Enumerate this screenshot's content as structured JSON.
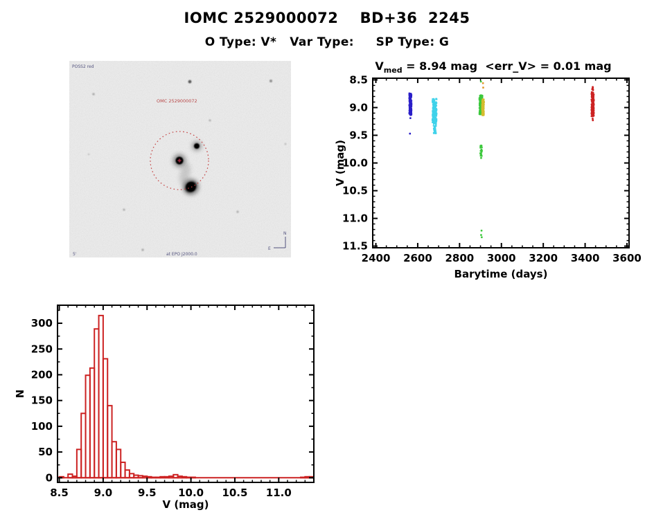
{
  "page": {
    "title": "IOMC 2529000072    BD+36  2245",
    "subtitle": "O Type: V*   Var Type:     SP Type: G"
  },
  "finder_chart": {
    "survey_label": "POSS2 red",
    "target_label": "OMC 2529000072",
    "epoch_label": "at EPO J2000.0",
    "scale_label": "5'",
    "compass_north": "N",
    "compass_east": "E"
  },
  "chart_data": [
    {
      "id": "lightcurve",
      "type": "scatter",
      "title": {
        "var": "V",
        "sub": "med",
        "rest": " = 8.94 mag  <err_V> = 0.01 mag"
      },
      "xlabel": "Barytime (days)",
      "ylabel": "V (mag)",
      "xlim": [
        2385,
        3610
      ],
      "ylim_top": 8.47,
      "ylim_bottom": 11.53,
      "xticks": [
        2400,
        2600,
        2800,
        3000,
        3200,
        3400,
        3600
      ],
      "xtick_labels": [
        "2400",
        "2600",
        "2800",
        "3000",
        "3200",
        "3400",
        "3600"
      ],
      "yticks": [
        8.5,
        9.0,
        9.5,
        10.0,
        10.5,
        11.0,
        11.5
      ],
      "ytick_labels": [
        "8.5",
        "9.0",
        "9.5",
        "10.0",
        "10.5",
        "11.0",
        "11.5"
      ],
      "x_minor": 50,
      "y_minor": 0.1,
      "marker_px": 2.4,
      "clusters": [
        {
          "name": "epoch1-blue",
          "color": "#2a1ec8",
          "x": 2565,
          "x_spread": 11,
          "v_min": 8.74,
          "v_max": 9.14,
          "n": 170
        },
        {
          "name": "epoch2-cyan",
          "color": "#3fd2ea",
          "x": 2680,
          "x_spread": 21,
          "v_min": 8.84,
          "v_max": 9.28,
          "n": 160
        },
        {
          "name": "epoch2-cyan-tail",
          "color": "#3fd2ea",
          "x": 2682,
          "x_spread": 13,
          "v_min": 9.28,
          "v_max": 9.47,
          "n": 28
        },
        {
          "name": "epoch3-green",
          "color": "#3cc83c",
          "x": 2902,
          "x_spread": 15,
          "v_min": 8.77,
          "v_max": 9.13,
          "n": 150
        },
        {
          "name": "epoch3-yellow",
          "color": "#d4bc2e",
          "x": 2912,
          "x_spread": 10,
          "v_min": 8.85,
          "v_max": 9.14,
          "n": 90
        },
        {
          "name": "epoch3-green-faint",
          "color": "#3cc83c",
          "x": 2903,
          "x_spread": 9,
          "v_min": 9.68,
          "v_max": 9.88,
          "n": 26
        },
        {
          "name": "epoch4-red-sparse",
          "color": "#cc2222",
          "x": 3436,
          "x_spread": 5,
          "v_min": 8.62,
          "v_max": 8.72,
          "n": 8
        },
        {
          "name": "epoch4-red",
          "color": "#cc2222",
          "x": 3436,
          "x_spread": 12,
          "v_min": 8.72,
          "v_max": 9.16,
          "n": 170
        }
      ],
      "points": [
        {
          "color": "#2a1ec8",
          "x": 2565,
          "v": 9.19
        },
        {
          "color": "#2a1ec8",
          "x": 2563,
          "v": 9.47
        },
        {
          "color": "#3cc83c",
          "x": 2902,
          "v": 8.53
        },
        {
          "color": "#e0962a",
          "x": 2912,
          "v": 8.56
        },
        {
          "color": "#e0962a",
          "x": 2913,
          "v": 8.64
        },
        {
          "color": "#3cc83c",
          "x": 2903,
          "v": 9.91
        },
        {
          "color": "#3cc83c",
          "x": 2905,
          "v": 11.22
        },
        {
          "color": "#3cc83c",
          "x": 2903,
          "v": 11.3
        },
        {
          "color": "#3cc83c",
          "x": 2906,
          "v": 11.34
        },
        {
          "color": "#cc2222",
          "x": 3436,
          "v": 9.2
        },
        {
          "color": "#cc2222",
          "x": 3437,
          "v": 9.23
        }
      ]
    },
    {
      "id": "v-histogram",
      "type": "bar",
      "xlabel": "V (mag)",
      "ylabel": "N",
      "color": "#cc2222",
      "xlim": [
        8.48,
        11.4
      ],
      "ylim": [
        -9,
        335
      ],
      "bin_width": 0.05,
      "xticks": [
        8.5,
        9.0,
        9.5,
        10.0,
        10.5,
        11.0
      ],
      "xtick_labels": [
        "8.5",
        "9.0",
        "9.5",
        "10.0",
        "10.5",
        "11.0"
      ],
      "yticks": [
        0,
        50,
        100,
        150,
        200,
        250,
        300
      ],
      "ytick_labels": [
        "0",
        "50",
        "100",
        "150",
        "200",
        "250",
        "300"
      ],
      "x_minor": 0.1,
      "y_minor": 25,
      "bins": [
        [
          8.5,
          2
        ],
        [
          8.55,
          0
        ],
        [
          8.6,
          7
        ],
        [
          8.65,
          3
        ],
        [
          8.7,
          55
        ],
        [
          8.75,
          125
        ],
        [
          8.8,
          199
        ],
        [
          8.85,
          213
        ],
        [
          8.9,
          289
        ],
        [
          8.95,
          315
        ],
        [
          9.0,
          231
        ],
        [
          9.05,
          140
        ],
        [
          9.1,
          70
        ],
        [
          9.15,
          55
        ],
        [
          9.2,
          30
        ],
        [
          9.25,
          15
        ],
        [
          9.3,
          8
        ],
        [
          9.35,
          5
        ],
        [
          9.4,
          4
        ],
        [
          9.45,
          3
        ],
        [
          9.5,
          2
        ],
        [
          9.55,
          1
        ],
        [
          9.6,
          1
        ],
        [
          9.65,
          2
        ],
        [
          9.7,
          2
        ],
        [
          9.75,
          3
        ],
        [
          9.8,
          6
        ],
        [
          9.85,
          3
        ],
        [
          9.9,
          2
        ],
        [
          9.95,
          1
        ],
        [
          10.0,
          1
        ],
        [
          11.25,
          1
        ],
        [
          11.3,
          2
        ],
        [
          11.35,
          2
        ]
      ]
    }
  ]
}
